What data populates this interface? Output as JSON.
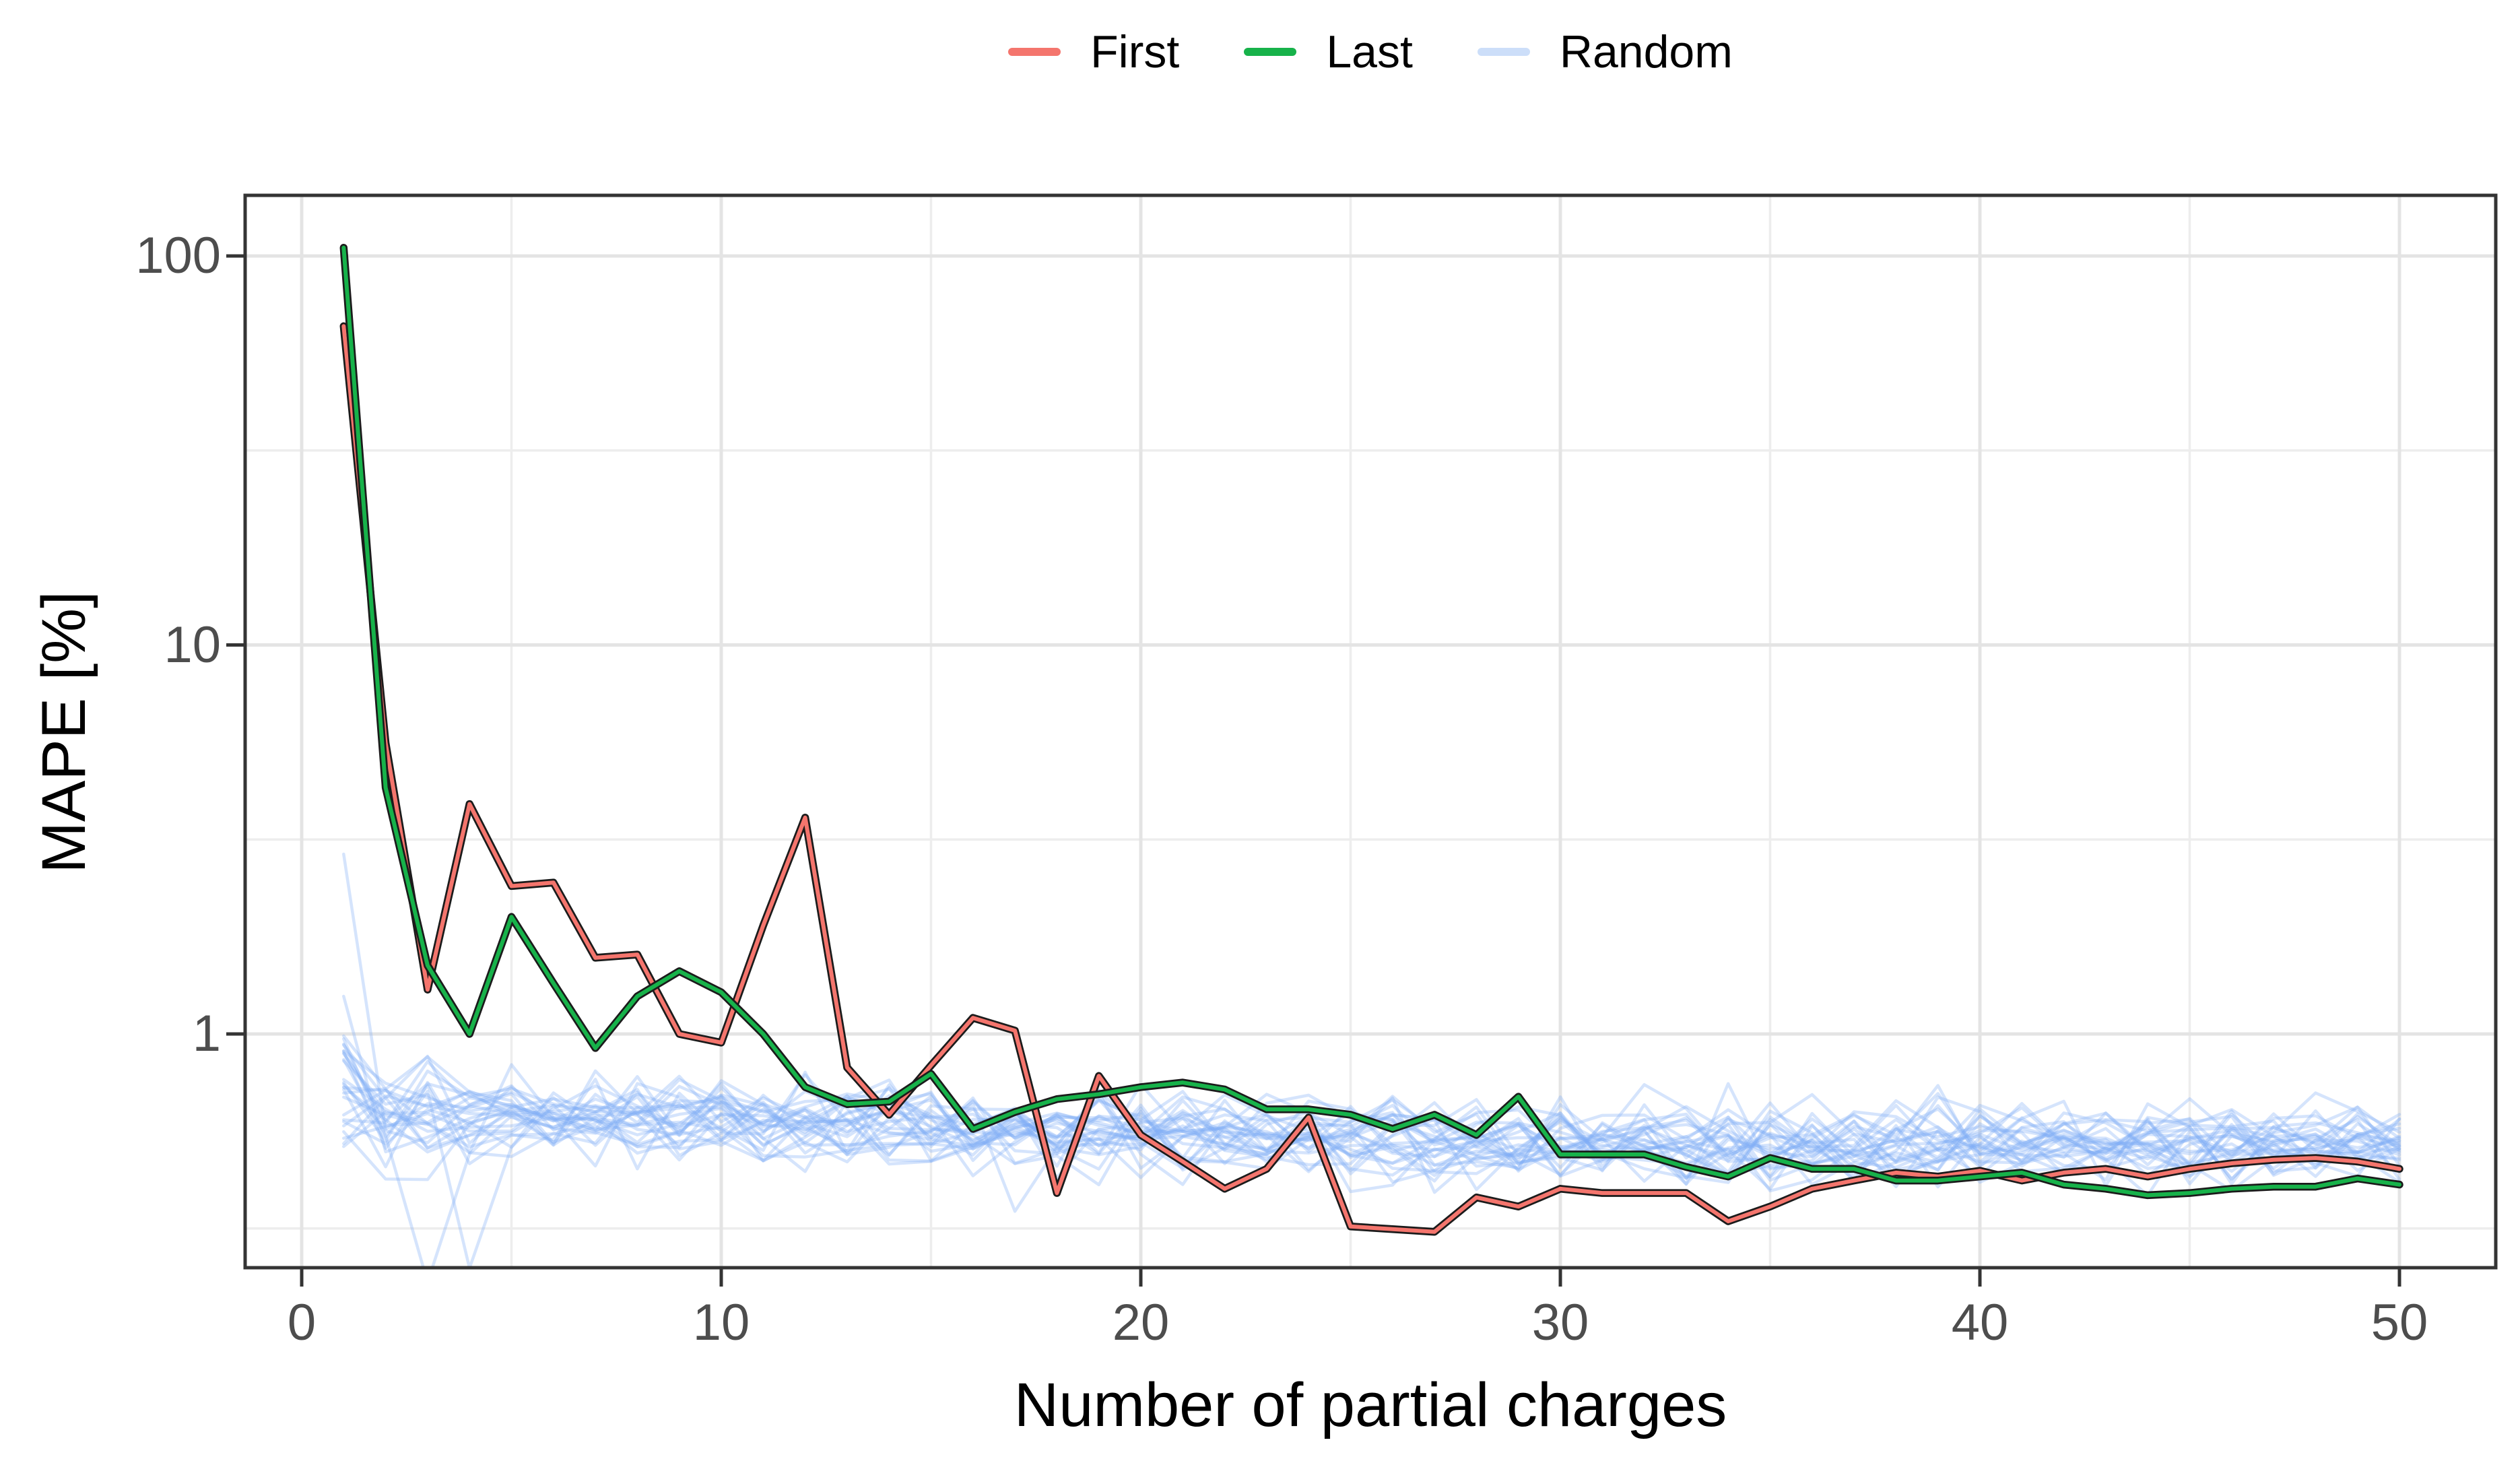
{
  "legend": {
    "items": [
      {
        "label": "First",
        "color": "#F4756D"
      },
      {
        "label": "Last",
        "color": "#17B24A"
      },
      {
        "label": "Random",
        "color": "#CCDEF9"
      }
    ]
  },
  "axes": {
    "x_label": "Number of partial charges",
    "y_label": "MAPE [%]",
    "x_tick_labels": [
      "0",
      "10",
      "20",
      "30",
      "40",
      "50"
    ],
    "y_tick_labels": [
      "100",
      "10",
      "1"
    ]
  },
  "styles": {
    "background": "#ffffff",
    "panel_border": "#343434",
    "grid_major": "#e4e4e4",
    "grid_minor": "#ededed",
    "tick_mark": "#343434",
    "tick_label": "#4d4d4d",
    "line_outline": "#1b1b1b",
    "first_color": "#F4756D",
    "last_color": "#17B24A",
    "random_color": "#7FACF5"
  },
  "chart_data": {
    "type": "line",
    "title": "",
    "xlabel": "Number of partial charges",
    "ylabel": "MAPE [%]",
    "x_scale": "linear",
    "y_scale": "log10",
    "xlim": [
      -1.4,
      52.3
    ],
    "ylim": [
      0.25,
      142
    ],
    "x_major_ticks": [
      0,
      10,
      20,
      30,
      40,
      50
    ],
    "x_minor_ticks": [
      5,
      15,
      25,
      35,
      45
    ],
    "y_major_ticks": [
      100,
      10,
      1
    ],
    "y_minor_ticks": [
      31.623,
      3.1623,
      0.31623
    ],
    "grid": true,
    "legend_position": "top-center",
    "x": [
      1,
      2,
      3,
      4,
      5,
      6,
      7,
      8,
      9,
      10,
      11,
      12,
      13,
      14,
      15,
      16,
      17,
      18,
      19,
      20,
      21,
      22,
      23,
      24,
      25,
      26,
      27,
      28,
      29,
      30,
      31,
      32,
      33,
      34,
      35,
      36,
      37,
      38,
      39,
      40,
      41,
      42,
      43,
      44,
      45,
      46,
      47,
      48,
      49,
      50
    ],
    "series": [
      {
        "name": "First",
        "color": "#F4756D",
        "values": [
          66,
          5.6,
          1.3,
          3.9,
          2.4,
          2.45,
          1.57,
          1.6,
          1.0,
          0.95,
          1.9,
          3.6,
          0.82,
          0.62,
          0.83,
          1.1,
          1.02,
          0.39,
          0.78,
          0.55,
          0.47,
          0.4,
          0.45,
          0.61,
          0.32,
          0.315,
          0.31,
          0.38,
          0.36,
          0.4,
          0.39,
          0.39,
          0.39,
          0.33,
          0.36,
          0.4,
          0.42,
          0.44,
          0.43,
          0.445,
          0.42,
          0.44,
          0.45,
          0.43,
          0.45,
          0.465,
          0.475,
          0.48,
          0.47,
          0.45
        ]
      },
      {
        "name": "Last",
        "color": "#17B24A",
        "values": [
          105,
          4.3,
          1.5,
          1.0,
          2.0,
          1.35,
          0.92,
          1.25,
          1.45,
          1.28,
          1.0,
          0.73,
          0.66,
          0.67,
          0.79,
          0.57,
          0.63,
          0.68,
          0.7,
          0.73,
          0.75,
          0.72,
          0.64,
          0.64,
          0.62,
          0.57,
          0.62,
          0.55,
          0.69,
          0.49,
          0.49,
          0.49,
          0.455,
          0.43,
          0.48,
          0.45,
          0.45,
          0.42,
          0.42,
          0.43,
          0.44,
          0.41,
          0.4,
          0.385,
          0.39,
          0.4,
          0.405,
          0.405,
          0.425,
          0.41
        ]
      }
    ],
    "random_ensemble": {
      "name": "Random",
      "color": "#7FACF5",
      "opacity": 0.33,
      "n_lines": 28,
      "seed": 97531,
      "description": "~28 semi-transparent light-blue lines; start spread 0.5-1.0 at x=1 (outliers 2.9 and 1.25), then a noisy band whose center drifts from ~0.61 to ~0.52 with log10 sigma ~0.05; occasional deep dips to ~0.23 near x=3-4",
      "start_range": [
        0.5,
        1.0
      ],
      "start_outliers": [
        2.9,
        1.25
      ],
      "band_center_start": 0.615,
      "band_center_end": 0.52,
      "band_log_sigma": 0.052,
      "clamp": [
        0.36,
        0.88
      ],
      "dips": [
        {
          "line": 2,
          "x": 3,
          "value": 0.23
        },
        {
          "line": 3,
          "x": 4,
          "value": 0.25
        },
        {
          "line": 5,
          "x": 17,
          "value": 0.35
        }
      ]
    }
  }
}
